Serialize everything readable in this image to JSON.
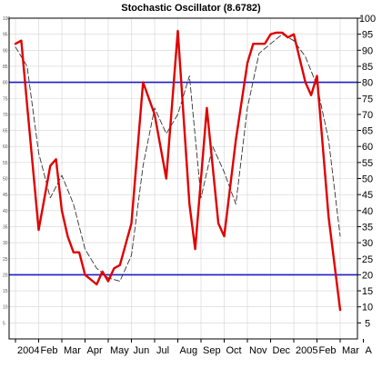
{
  "chart_data": {
    "type": "line",
    "title": "Stochastic Oscillator (8.6782)",
    "xlabel": "",
    "ylabel": "",
    "ylim": [
      0,
      100
    ],
    "y_ticks": [
      5,
      10,
      15,
      20,
      25,
      30,
      35,
      40,
      45,
      50,
      55,
      60,
      65,
      70,
      75,
      80,
      85,
      90,
      95,
      100
    ],
    "x_tick_labels": [
      "2004",
      "Feb",
      "Mar",
      "Apr",
      "May",
      "Jun",
      "Jul",
      "Aug",
      "Sep",
      "Oct",
      "Nov",
      "Dec",
      "2005",
      "Feb",
      "Mar",
      "A"
    ],
    "reference_lines": [
      {
        "value": 80,
        "color": "#1c1cc8"
      },
      {
        "value": 20,
        "color": "#1c1cc8"
      }
    ],
    "grid": true,
    "legend": "none",
    "series": [
      {
        "color": "#e00000",
        "style": "solid",
        "points": [
          [
            0.0,
            92
          ],
          [
            0.25,
            93
          ],
          [
            0.5,
            73
          ],
          [
            1.0,
            34
          ],
          [
            1.5,
            54
          ],
          [
            1.75,
            56
          ],
          [
            2.0,
            40
          ],
          [
            2.25,
            32
          ],
          [
            2.5,
            27
          ],
          [
            2.75,
            27
          ],
          [
            3.0,
            20
          ],
          [
            3.5,
            17
          ],
          [
            3.75,
            21
          ],
          [
            4.0,
            18
          ],
          [
            4.25,
            22
          ],
          [
            4.5,
            23
          ],
          [
            5.0,
            36
          ],
          [
            5.5,
            80
          ],
          [
            6.0,
            70
          ],
          [
            6.5,
            50
          ],
          [
            7.0,
            96
          ],
          [
            7.5,
            42
          ],
          [
            7.75,
            28
          ],
          [
            8.25,
            72
          ],
          [
            8.75,
            36
          ],
          [
            9.0,
            32
          ],
          [
            9.5,
            62
          ],
          [
            10.0,
            86
          ],
          [
            10.25,
            92
          ],
          [
            10.75,
            92
          ],
          [
            11.0,
            95
          ],
          [
            11.25,
            95.5
          ],
          [
            11.5,
            95.5
          ],
          [
            11.75,
            94
          ],
          [
            12.0,
            95
          ],
          [
            12.5,
            80
          ],
          [
            12.75,
            76
          ],
          [
            13.0,
            82
          ],
          [
            13.5,
            38
          ],
          [
            14.0,
            9
          ]
        ]
      },
      {
        "color": "#333333",
        "style": "dashed",
        "points": [
          [
            0.0,
            91
          ],
          [
            0.5,
            85
          ],
          [
            1.0,
            58
          ],
          [
            1.5,
            44
          ],
          [
            2.0,
            51
          ],
          [
            2.5,
            42
          ],
          [
            3.0,
            28
          ],
          [
            3.5,
            22
          ],
          [
            4.0,
            19
          ],
          [
            4.5,
            18
          ],
          [
            5.0,
            26
          ],
          [
            5.5,
            54
          ],
          [
            6.0,
            72
          ],
          [
            6.5,
            64
          ],
          [
            7.0,
            70
          ],
          [
            7.5,
            82
          ],
          [
            8.0,
            44
          ],
          [
            8.5,
            60
          ],
          [
            9.0,
            52
          ],
          [
            9.5,
            42
          ],
          [
            10.0,
            72
          ],
          [
            10.5,
            89
          ],
          [
            11.0,
            92
          ],
          [
            11.5,
            95
          ],
          [
            12.0,
            93
          ],
          [
            12.5,
            88
          ],
          [
            13.0,
            79
          ],
          [
            13.5,
            62
          ],
          [
            14.0,
            32
          ]
        ]
      }
    ]
  }
}
